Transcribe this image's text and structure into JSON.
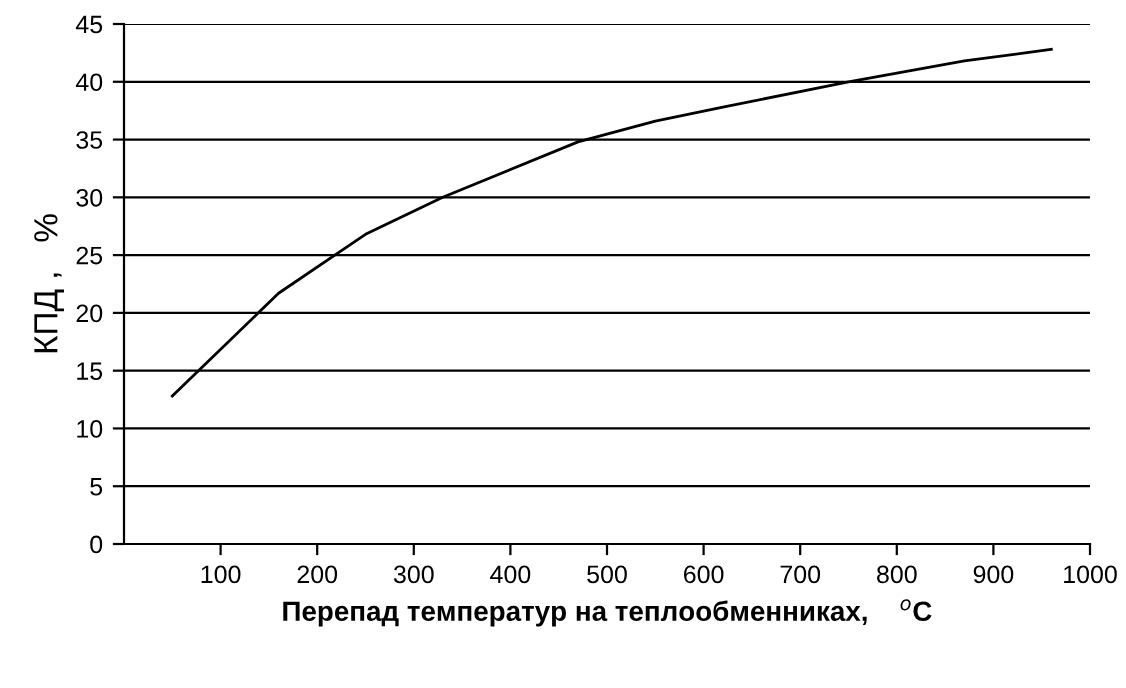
{
  "chart_data": {
    "type": "line",
    "xlabel": "Перепад температур на теплообменниках,    $^{o}$C",
    "ylabel": "КПД ,   %",
    "x": [
      50,
      160,
      250,
      330,
      470,
      550,
      620,
      750,
      870,
      960
    ],
    "series": [
      {
        "color": "#000000",
        "values": [
          12.8,
          21.7,
          26.8,
          30.0,
          34.8,
          36.6,
          37.8,
          40.0,
          41.8,
          42.8
        ]
      }
    ],
    "xlim": [
      0,
      1000
    ],
    "xticks": [
      100,
      200,
      300,
      400,
      500,
      600,
      700,
      800,
      900,
      1000
    ],
    "ylim": [
      0,
      45
    ],
    "yticks": [
      0,
      5,
      10,
      15,
      20,
      25,
      30,
      35,
      40,
      45
    ],
    "grid": "y",
    "marker": "none",
    "line_style": "solid"
  }
}
